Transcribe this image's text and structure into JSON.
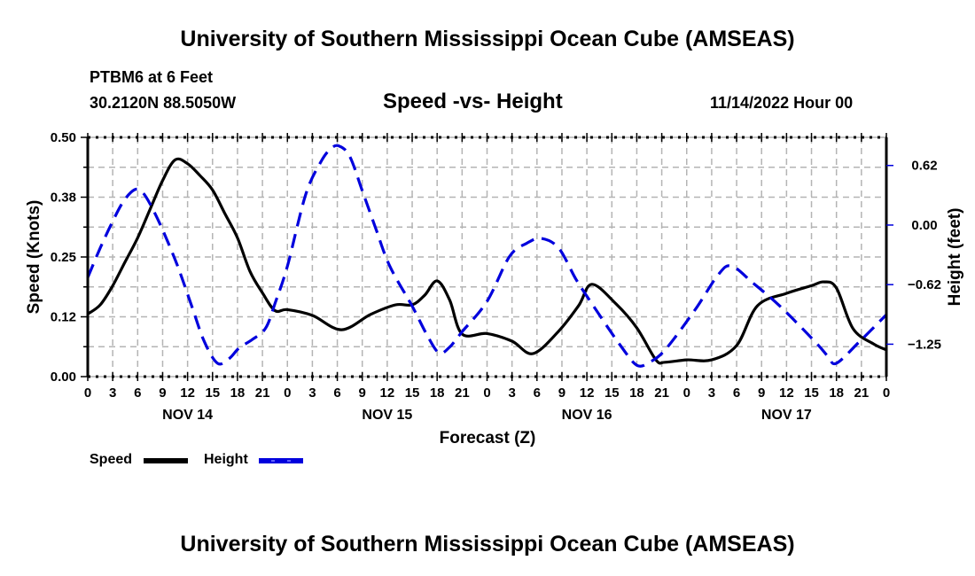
{
  "header": {
    "title": "University of Southern Mississippi Ocean Cube (AMSEAS)",
    "station": "PTBM6 at 6 Feet",
    "coords": "30.2120N  88.5050W",
    "date": "11/14/2022 Hour 00"
  },
  "footer": {
    "title": "University of Southern Mississippi Ocean Cube (AMSEAS)"
  },
  "colors": {
    "speed": "#000000",
    "height": "#0000dd",
    "grid": "#b4b4b4"
  },
  "chart_data": {
    "type": "line",
    "title": "Speed -vs- Height",
    "xlabel": "Forecast (Z)",
    "ylabel": "Speed (Knots)",
    "y2label": "Height (feet)",
    "xlim": [
      0,
      96
    ],
    "ylim": [
      0,
      0.5
    ],
    "y2lim": [
      -1.59,
      0.92
    ],
    "grid": true,
    "x_tick_labels": [
      "0",
      "3",
      "6",
      "9",
      "12",
      "15",
      "18",
      "21",
      "0",
      "3",
      "6",
      "9",
      "12",
      "15",
      "18",
      "21",
      "0",
      "3",
      "6",
      "9",
      "12",
      "15",
      "18",
      "21",
      "0",
      "3",
      "6",
      "9",
      "12",
      "15",
      "18",
      "21",
      "0"
    ],
    "x_day_labels": [
      {
        "label": "NOV 14",
        "hour": 12
      },
      {
        "label": "NOV 15",
        "hour": 36
      },
      {
        "label": "NOV 16",
        "hour": 60
      },
      {
        "label": "NOV 17",
        "hour": 84
      }
    ],
    "y_ticks": [
      {
        "value": 0.0,
        "label": "0.00"
      },
      {
        "value": 0.125,
        "label": "0.12"
      },
      {
        "value": 0.25,
        "label": "0.25"
      },
      {
        "value": 0.375,
        "label": "0.38"
      },
      {
        "value": 0.5,
        "label": "0.50"
      }
    ],
    "y2_ticks": [
      {
        "value": 0.625,
        "label": "0.62"
      },
      {
        "value": 0.0,
        "label": "0.00"
      },
      {
        "value": -0.625,
        "label": "−0.62"
      },
      {
        "value": -1.25,
        "label": "−1.25"
      }
    ],
    "legend": {
      "position": "bottom-left",
      "entries": [
        "Speed",
        "Height"
      ]
    },
    "series": [
      {
        "name": "Speed",
        "axis": "left",
        "style": "solid",
        "x": [
          0,
          1.5,
          3,
          4.5,
          6,
          7.5,
          9,
          10.5,
          12,
          13.5,
          15,
          16.5,
          18,
          19.5,
          21,
          22.5,
          24,
          27,
          30.5,
          34,
          37,
          39,
          40.5,
          42,
          43.5,
          45,
          48,
          51,
          53.5,
          56.5,
          59,
          60.6,
          63.5,
          66,
          68.3,
          69.4,
          72,
          75,
          78,
          80.5,
          84,
          87,
          88.5,
          90,
          92,
          94.5,
          96
        ],
        "values": [
          0.131,
          0.15,
          0.19,
          0.24,
          0.29,
          0.35,
          0.41,
          0.453,
          0.445,
          0.42,
          0.39,
          0.34,
          0.29,
          0.22,
          0.175,
          0.138,
          0.14,
          0.128,
          0.098,
          0.13,
          0.15,
          0.15,
          0.17,
          0.2,
          0.16,
          0.089,
          0.09,
          0.074,
          0.048,
          0.093,
          0.148,
          0.193,
          0.152,
          0.102,
          0.035,
          0.03,
          0.035,
          0.035,
          0.065,
          0.148,
          0.174,
          0.19,
          0.198,
          0.185,
          0.1,
          0.068,
          0.056
        ]
      },
      {
        "name": "Height",
        "axis": "right",
        "style": "dashed",
        "x": [
          0,
          1.5,
          3,
          4.3,
          5.6,
          6.5,
          7.5,
          9,
          10.8,
          12.5,
          14,
          15.6,
          17,
          18.2,
          19.8,
          21.4,
          22.6,
          24,
          26.2,
          28,
          29.2,
          30.2,
          31.5,
          33,
          34.6,
          36.3,
          39,
          40.7,
          42.2,
          43.5,
          45,
          48,
          50.7,
          52.8,
          54.5,
          56.6,
          58.7,
          60.8,
          64,
          66,
          67.5,
          69.4,
          73,
          75.8,
          77.4,
          80,
          83.2,
          87.5,
          89,
          90,
          92.8,
          96
        ],
        "values": [
          -0.55,
          -0.24,
          0.04,
          0.25,
          0.37,
          0.35,
          0.22,
          -0.05,
          -0.43,
          -0.85,
          -1.22,
          -1.45,
          -1.4,
          -1.29,
          -1.2,
          -1.08,
          -0.8,
          -0.43,
          0.32,
          0.66,
          0.8,
          0.83,
          0.72,
          0.36,
          -0.03,
          -0.43,
          -0.85,
          -1.14,
          -1.34,
          -1.28,
          -1.12,
          -0.8,
          -0.33,
          -0.19,
          -0.14,
          -0.24,
          -0.57,
          -0.85,
          -1.26,
          -1.47,
          -1.44,
          -1.31,
          -0.89,
          -0.52,
          -0.43,
          -0.61,
          -0.85,
          -1.23,
          -1.38,
          -1.45,
          -1.22,
          -0.94
        ]
      }
    ]
  }
}
